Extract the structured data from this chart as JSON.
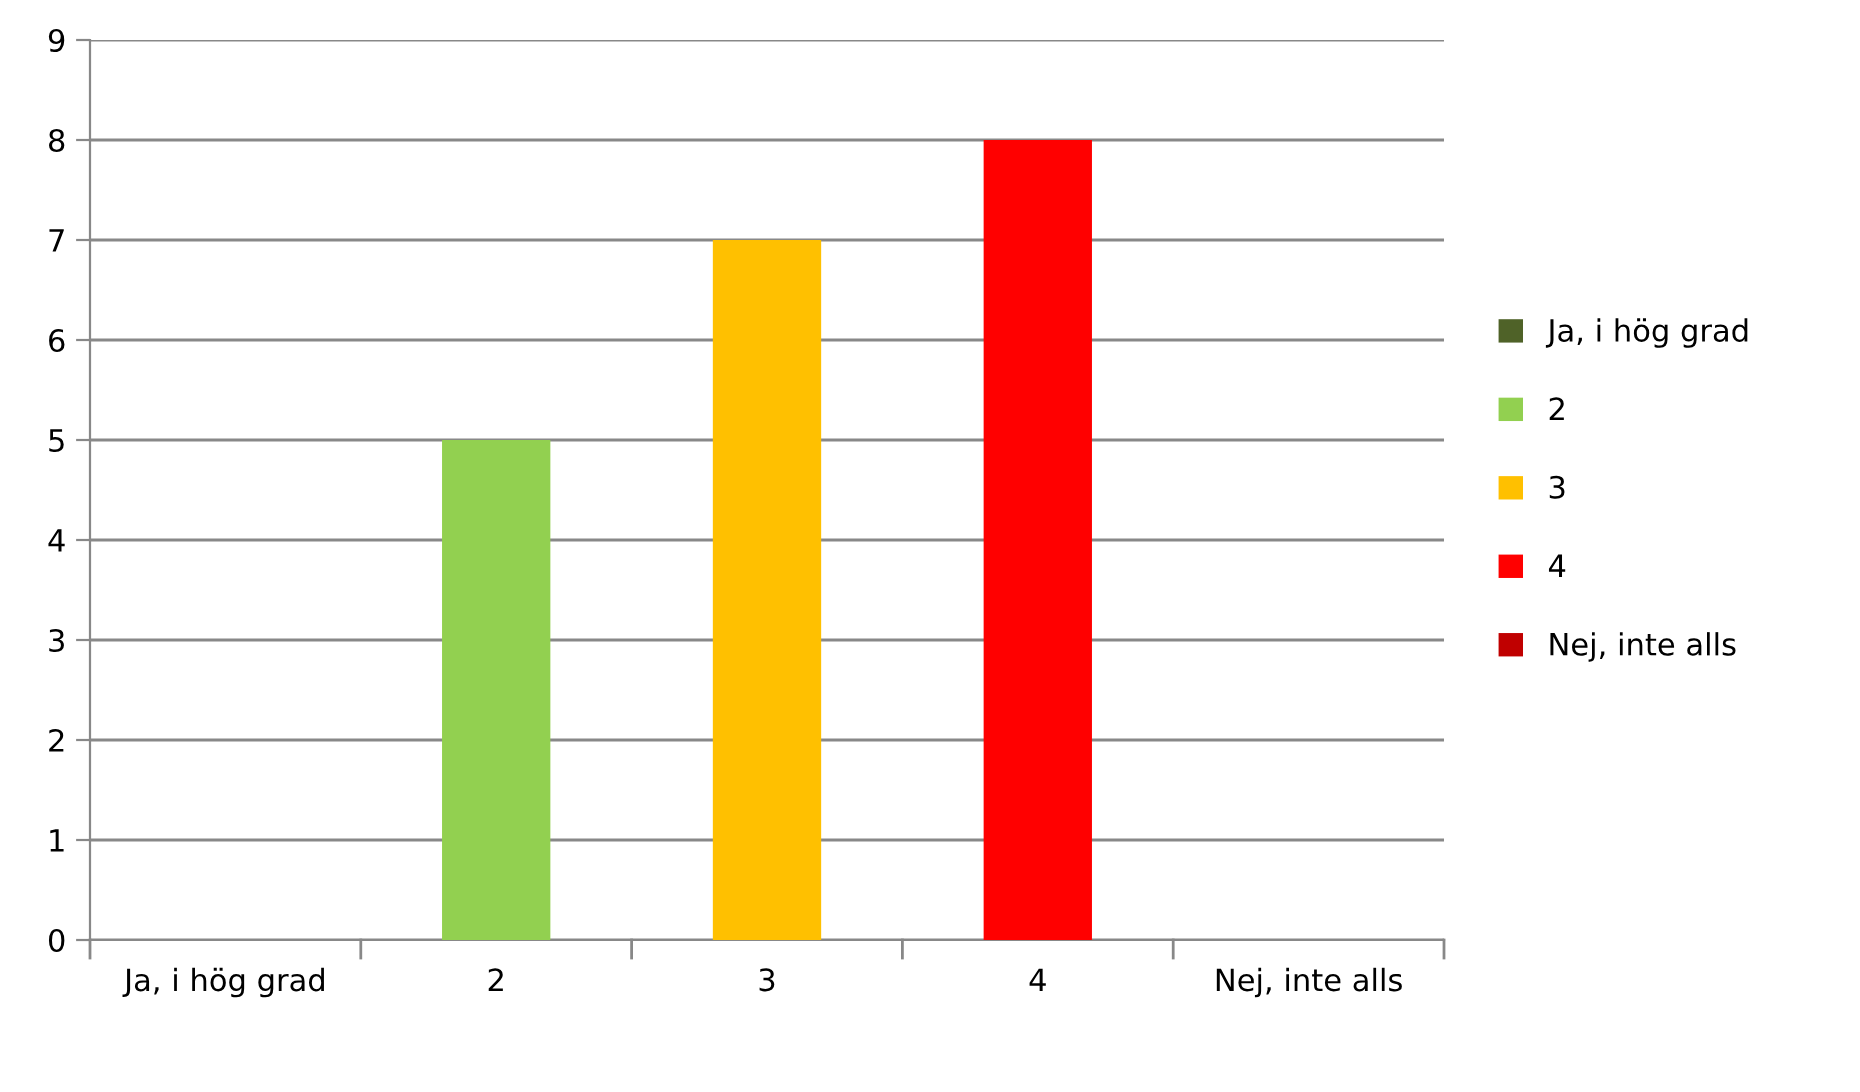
{
  "chart_data": {
    "type": "bar",
    "categories": [
      "Ja, i hög grad",
      "2",
      "3",
      "4",
      "Nej, inte alls"
    ],
    "series": [
      {
        "name": "Ja, i hög grad",
        "color": "#4f6228",
        "values": [
          0,
          null,
          null,
          null,
          null
        ]
      },
      {
        "name": "2",
        "color": "#92d050",
        "values": [
          null,
          5,
          null,
          null,
          null
        ]
      },
      {
        "name": "3",
        "color": "#ffc000",
        "values": [
          null,
          null,
          7,
          null,
          null
        ]
      },
      {
        "name": "4",
        "color": "#ff0000",
        "values": [
          null,
          null,
          null,
          8,
          null
        ]
      },
      {
        "name": "Nej, inte alls",
        "color": "#c00000",
        "values": [
          null,
          null,
          null,
          null,
          0
        ]
      }
    ],
    "ylim": [
      0,
      9
    ],
    "yticks": [
      0,
      1,
      2,
      3,
      4,
      5,
      6,
      7,
      8,
      9
    ],
    "grid": "y",
    "legend": "right"
  }
}
